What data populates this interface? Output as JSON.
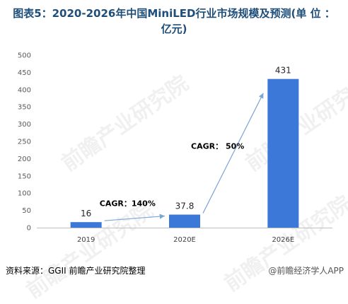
{
  "title": {
    "line1": "图表5：2020-2026年中国MiniLED行业市场规模及预测(单 位 ：",
    "line2": "亿元)"
  },
  "source": "资料来源：GGII 前瞻产业研究院整理",
  "brand": "@前瞻经济学人APP",
  "watermark": "前瞻产业研究院",
  "colors": {
    "bar": "#3b78d8",
    "arrow": "#7aa6d6",
    "title": "#1f4e79"
  },
  "chart_data": {
    "type": "bar",
    "categories": [
      "2019",
      "2020E",
      "2026E"
    ],
    "values": [
      16,
      37.8,
      431
    ],
    "value_labels": [
      "16",
      "37.8",
      "431"
    ],
    "ylim": [
      0,
      500
    ],
    "yticks": [
      0,
      50,
      100,
      150,
      200,
      250,
      300,
      350,
      400,
      450,
      500
    ],
    "grid": false,
    "annotations": [
      {
        "text": "CAGR：140%",
        "from": "2019",
        "to": "2020E"
      },
      {
        "text": "CAGR： 50%",
        "from": "2020E",
        "to": "2026E"
      }
    ]
  }
}
